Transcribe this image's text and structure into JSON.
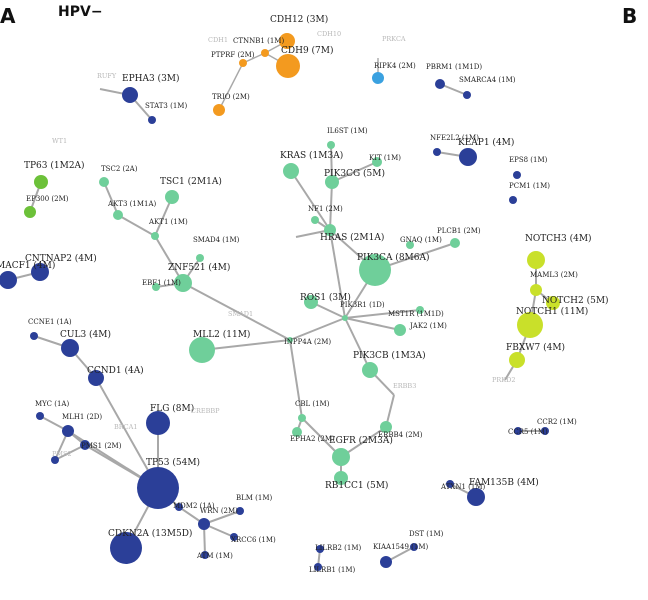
{
  "figure": {
    "panel_a": "A",
    "panel_b": "B",
    "title": "HPV−"
  },
  "colors": {
    "orange": "#f39a1f",
    "light_blue": "#3aa1e0",
    "navy": "#2b3f98",
    "bright_green": "#6cc139",
    "mint": "#6fcf9a",
    "yellow_green": "#c9e02a",
    "ghost": "#b8b8b8"
  },
  "nodes": [
    {
      "id": "cdh12",
      "label": "CDH12 (3M)",
      "color": "orange",
      "r": 8
    },
    {
      "id": "cdh9",
      "label": "CDH9 (7M)",
      "color": "orange",
      "r": 12
    },
    {
      "id": "ctnnb1",
      "label": "CTNNB1 (1M)",
      "color": "orange",
      "r": 4
    },
    {
      "id": "ptprf",
      "label": "PTPRF (2M)",
      "color": "orange",
      "r": 4
    },
    {
      "id": "trio",
      "label": "TRIO (2M)",
      "color": "orange",
      "r": 6
    },
    {
      "id": "ripk4",
      "label": "RIPK4 (2M)",
      "color": "light_blue",
      "r": 6
    },
    {
      "id": "epha3",
      "label": "EPHA3 (3M)",
      "color": "navy",
      "r": 8
    },
    {
      "id": "stat3",
      "label": "STAT3 (1M)",
      "color": "navy",
      "r": 4
    },
    {
      "id": "pbrm1",
      "label": "PBRM1 (1M1D)",
      "color": "navy",
      "r": 5
    },
    {
      "id": "smarca4",
      "label": "SMARCA4 (1M)",
      "color": "navy",
      "r": 4
    },
    {
      "id": "keap1",
      "label": "KEAP1 (4M)",
      "color": "navy",
      "r": 9
    },
    {
      "id": "nfe2l2",
      "label": "NFE2L2 (1M)",
      "color": "navy",
      "r": 4
    },
    {
      "id": "eps8",
      "label": "EPS8 (1M)",
      "color": "navy",
      "r": 4
    },
    {
      "id": "pcm1",
      "label": "PCM1 (1M)",
      "color": "navy",
      "r": 4
    },
    {
      "id": "tp63",
      "label": "TP63 (1M2A)",
      "color": "bright_green",
      "r": 7
    },
    {
      "id": "ep300",
      "label": "EP300 (2M)",
      "color": "bright_green",
      "r": 6
    },
    {
      "id": "cntnap2",
      "label": "CNTNAP2 (4M)",
      "color": "navy",
      "r": 9
    },
    {
      "id": "macf1",
      "label": "MACF1 (4M)",
      "color": "navy",
      "r": 9
    },
    {
      "id": "il6st",
      "label": "IL6ST (1M)",
      "color": "mint",
      "r": 4
    },
    {
      "id": "kras",
      "label": "KRAS (1M3A)",
      "color": "mint",
      "r": 8
    },
    {
      "id": "pik3cg",
      "label": "PIK3CG (5M)",
      "color": "mint",
      "r": 7
    },
    {
      "id": "kit",
      "label": "KIT (1M)",
      "color": "mint",
      "r": 5
    },
    {
      "id": "tsc2",
      "label": "TSC2 (2A)",
      "color": "mint",
      "r": 5
    },
    {
      "id": "tsc1",
      "label": "TSC1 (2M1A)",
      "color": "mint",
      "r": 7
    },
    {
      "id": "akt3",
      "label": "AKT3 (1M1A)",
      "color": "mint",
      "r": 5
    },
    {
      "id": "akt1",
      "label": "AKT1 (1M)",
      "color": "mint",
      "r": 4
    },
    {
      "id": "nf1",
      "label": "NF1 (2M)",
      "color": "mint",
      "r": 4
    },
    {
      "id": "hras",
      "label": "HRAS (2M1A)",
      "color": "mint",
      "r": 6
    },
    {
      "id": "plcb1",
      "label": "PLCB1 (2M)",
      "color": "mint",
      "r": 5
    },
    {
      "id": "gnaq",
      "label": "GNAQ (1M)",
      "color": "mint",
      "r": 4
    },
    {
      "id": "pik3ca",
      "label": "PIK3CA (8M6A)",
      "color": "mint",
      "r": 16
    },
    {
      "id": "smad4",
      "label": "SMAD4 (1M)",
      "color": "mint",
      "r": 4
    },
    {
      "id": "znf521",
      "label": "ZNF521 (4M)",
      "color": "mint",
      "r": 9
    },
    {
      "id": "ebf1",
      "label": "EBF1 (1M)",
      "color": "mint",
      "r": 4
    },
    {
      "id": "ros1",
      "label": "ROS1 (3M)",
      "color": "mint",
      "r": 7
    },
    {
      "id": "pik3r1",
      "label": "PIK3R1 (1D)",
      "color": "mint",
      "r": 3
    },
    {
      "id": "mst1r",
      "label": "MST1R (1M1D)",
      "color": "mint",
      "r": 6
    },
    {
      "id": "jak2",
      "label": "JAK2 (1M)",
      "color": "mint",
      "r": 4
    },
    {
      "id": "mll2",
      "label": "MLL2 (11M)",
      "color": "mint",
      "r": 13
    },
    {
      "id": "inpp4a",
      "label": "INPP4A (2M)",
      "color": "mint",
      "r": 3
    },
    {
      "id": "pik3cb",
      "label": "PIK3CB (1M3A)",
      "color": "mint",
      "r": 8
    },
    {
      "id": "cbl",
      "label": "CBL (1M)",
      "color": "mint",
      "r": 4
    },
    {
      "id": "epha2",
      "label": "EPHA2 (2M)",
      "color": "mint",
      "r": 5
    },
    {
      "id": "egfr",
      "label": "EGFR (2M3A)",
      "color": "mint",
      "r": 9
    },
    {
      "id": "erbb4",
      "label": "ERBB4 (2M)",
      "color": "mint",
      "r": 6
    },
    {
      "id": "rb1cc1",
      "label": "RB1CC1 (5M)",
      "color": "mint",
      "r": 7
    },
    {
      "id": "notch3",
      "label": "NOTCH3 (4M)",
      "color": "yellow_green",
      "r": 9
    },
    {
      "id": "maml3",
      "label": "MAML3 (2M)",
      "color": "yellow_green",
      "r": 6
    },
    {
      "id": "notch2",
      "label": "NOTCH2 (5M)",
      "color": "yellow_green",
      "r": 7
    },
    {
      "id": "notch1",
      "label": "NOTCH1 (11M)",
      "color": "yellow_green",
      "r": 13
    },
    {
      "id": "fbxw7",
      "label": "FBXW7 (4M)",
      "color": "yellow_green",
      "r": 8
    },
    {
      "id": "ccne1",
      "label": "CCNE1 (1A)",
      "color": "navy",
      "r": 4
    },
    {
      "id": "cul3",
      "label": "CUL3 (4M)",
      "color": "navy",
      "r": 9
    },
    {
      "id": "ccnd1",
      "label": "CCND1 (4A)",
      "color": "navy",
      "r": 8
    },
    {
      "id": "myc",
      "label": "MYC (1A)",
      "color": "navy",
      "r": 4
    },
    {
      "id": "mlh1",
      "label": "MLH1 (2D)",
      "color": "navy",
      "r": 6
    },
    {
      "id": "flg",
      "label": "FLG (8M)",
      "color": "navy",
      "r": 12
    },
    {
      "id": "pms1",
      "label": "PMS1 (2M)",
      "color": "navy",
      "r": 5
    },
    {
      "id": "pms2",
      "label": "",
      "color": "navy",
      "r": 4
    },
    {
      "id": "tp53",
      "label": "TP53 (54M)",
      "color": "navy",
      "r": 21
    },
    {
      "id": "mdm2",
      "label": "MDM2 (1A)",
      "color": "navy",
      "r": 4
    },
    {
      "id": "cdkn2a",
      "label": "CDKN2A (13M5D)",
      "color": "navy",
      "r": 16
    },
    {
      "id": "wrn",
      "label": "WRN (2M)",
      "color": "navy",
      "r": 6
    },
    {
      "id": "blm",
      "label": "BLM (1M)",
      "color": "navy",
      "r": 4
    },
    {
      "id": "xrcc6",
      "label": "XRCC6 (1M)",
      "color": "navy",
      "r": 4
    },
    {
      "id": "atm",
      "label": "ATM (1M)",
      "color": "navy",
      "r": 4
    },
    {
      "id": "ccr5",
      "label": "CCR5 (1M)",
      "color": "navy",
      "r": 4
    },
    {
      "id": "ccr2",
      "label": "CCR2 (1M)",
      "color": "navy",
      "r": 4
    },
    {
      "id": "atxn1",
      "label": "ATXN1 (1M)",
      "color": "navy",
      "r": 4
    },
    {
      "id": "fam135b",
      "label": "FAM135B (4M)",
      "color": "navy",
      "r": 9
    },
    {
      "id": "dst",
      "label": "DST (1M)",
      "color": "navy",
      "r": 4
    },
    {
      "id": "kiaa1549",
      "label": "KIAA1549 (1M)",
      "color": "navy",
      "r": 6
    },
    {
      "id": "lilrb2",
      "label": "LILRB2 (1M)",
      "color": "navy",
      "r": 4
    },
    {
      "id": "lilrb1",
      "label": "LILRB1 (1M)",
      "color": "navy",
      "r": 4
    }
  ],
  "ghost_labels": [
    {
      "id": "cdh1",
      "label": "CDH1"
    },
    {
      "id": "cdh10",
      "label": "CDH10"
    },
    {
      "id": "prkca",
      "label": "PRKCA"
    },
    {
      "id": "rufy",
      "label": "RUFY"
    },
    {
      "id": "wt1",
      "label": "WT1"
    },
    {
      "id": "smad1",
      "label": "SMAD1"
    },
    {
      "id": "crebbp",
      "label": "CREBBP"
    },
    {
      "id": "brca1",
      "label": "BRCA1"
    },
    {
      "id": "pms2g",
      "label": "PMS2"
    },
    {
      "id": "erbb3",
      "label": "ERBB3"
    },
    {
      "id": "prkd2",
      "label": "PRKD2"
    },
    {
      "id": "pkd2",
      "label": "PRKD2"
    }
  ]
}
